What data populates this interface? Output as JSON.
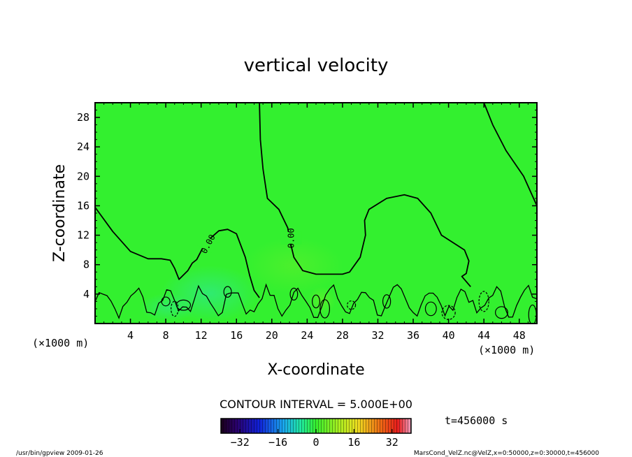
{
  "chart_data": {
    "type": "heatmap",
    "title": "vertical velocity",
    "xlabel": "X-coordinate",
    "ylabel": "Z-coordinate",
    "x_unit": "(×1000 m)",
    "y_unit": "(×1000 m)",
    "xlim": [
      0,
      50
    ],
    "ylim": [
      0,
      30
    ],
    "x_ticks": [
      4,
      8,
      12,
      16,
      20,
      24,
      28,
      32,
      36,
      40,
      44,
      48
    ],
    "y_ticks": [
      4,
      8,
      12,
      16,
      20,
      24,
      28
    ],
    "contour_interval": "CONTOUR INTERVAL = 5.000E+00",
    "contour_labels": [
      "0.00",
      "0.00"
    ],
    "colorbar_ticks": [
      -32,
      -16,
      0,
      16,
      32
    ],
    "colorbar_range": [
      -40,
      40
    ],
    "time_label": "t=456000 s",
    "zero_contour_main": [
      [
        0,
        15.8
      ],
      [
        2,
        12.5
      ],
      [
        4,
        9.8
      ],
      [
        6,
        8.8
      ],
      [
        7.5,
        8.8
      ],
      [
        8.5,
        8.6
      ],
      [
        9,
        7.5
      ],
      [
        9.5,
        6
      ],
      [
        10.5,
        7.2
      ],
      [
        11,
        8.2
      ],
      [
        11.5,
        8.7
      ],
      [
        12.5,
        11
      ],
      [
        14,
        12.6
      ],
      [
        15,
        12.8
      ],
      [
        16,
        12.2
      ],
      [
        17,
        9
      ],
      [
        17.5,
        6.5
      ],
      [
        18,
        4.5
      ],
      [
        18.6,
        3.5
      ]
    ],
    "zero_contour_center": [
      [
        18.6,
        30
      ],
      [
        18.7,
        25
      ],
      [
        19,
        21
      ],
      [
        19.5,
        17
      ],
      [
        20.8,
        15.5
      ],
      [
        21.8,
        13
      ],
      [
        22,
        11.5
      ],
      [
        22.5,
        9
      ],
      [
        23.5,
        7.2
      ],
      [
        25,
        6.7
      ],
      [
        28,
        6.7
      ],
      [
        28.8,
        7
      ],
      [
        30,
        9
      ],
      [
        30.6,
        12
      ],
      [
        30.5,
        14
      ],
      [
        31,
        15.5
      ],
      [
        33,
        17
      ],
      [
        35,
        17.5
      ],
      [
        36.5,
        17
      ],
      [
        38,
        15
      ],
      [
        39.2,
        12
      ],
      [
        40.5,
        11
      ],
      [
        41.8,
        10
      ],
      [
        42.3,
        8.5
      ],
      [
        42,
        6.8
      ],
      [
        41.5,
        6.4
      ],
      [
        42.5,
        5
      ]
    ],
    "zero_contour_right": [
      [
        44,
        30
      ],
      [
        45,
        27
      ],
      [
        46.5,
        23.5
      ],
      [
        48.5,
        20
      ],
      [
        50,
        16
      ]
    ],
    "background_color": "#33f02f",
    "footer_left": "/usr/bin/gpview   2009-01-26",
    "footer_right": "MarsCond_VelZ.nc@VelZ,x=0:50000,z=0:30000,t=456000"
  }
}
